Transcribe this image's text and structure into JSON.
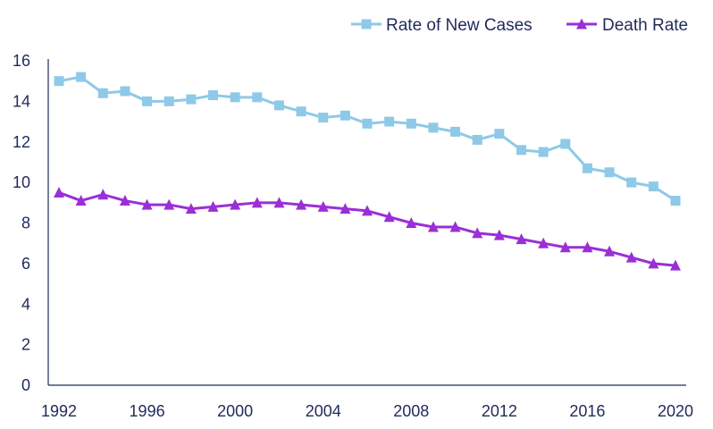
{
  "chart_data": {
    "type": "line",
    "title": "",
    "xlabel": "",
    "ylabel": "",
    "x": [
      1992,
      1993,
      1994,
      1995,
      1996,
      1997,
      1998,
      1999,
      2000,
      2001,
      2002,
      2003,
      2004,
      2005,
      2006,
      2007,
      2008,
      2009,
      2010,
      2011,
      2012,
      2013,
      2014,
      2015,
      2016,
      2017,
      2018,
      2019,
      2020
    ],
    "x_ticks": [
      "1992",
      "1996",
      "2000",
      "2004",
      "2008",
      "2012",
      "2016",
      "2020"
    ],
    "y_ticks": [
      "0",
      "2",
      "4",
      "6",
      "8",
      "10",
      "12",
      "14",
      "16"
    ],
    "xlim": [
      1992,
      2020
    ],
    "ylim": [
      0,
      16
    ],
    "grid": false,
    "legend_position": "top-right",
    "series": [
      {
        "name": "Rate of New Cases",
        "color": "#8ec9e8",
        "marker": "square",
        "values": [
          15.0,
          15.2,
          14.4,
          14.5,
          14.0,
          14.0,
          14.1,
          14.3,
          14.2,
          14.2,
          13.8,
          13.5,
          13.2,
          13.3,
          12.9,
          13.0,
          12.9,
          12.7,
          12.5,
          12.1,
          12.4,
          11.6,
          11.5,
          11.9,
          10.7,
          10.5,
          10.0,
          9.8,
          9.1
        ]
      },
      {
        "name": "Death Rate",
        "color": "#9b2fd6",
        "marker": "triangle",
        "values": [
          9.5,
          9.1,
          9.4,
          9.1,
          8.9,
          8.9,
          8.7,
          8.8,
          8.9,
          9.0,
          9.0,
          8.9,
          8.8,
          8.7,
          8.6,
          8.3,
          8.0,
          7.8,
          7.8,
          7.5,
          7.4,
          7.2,
          7.0,
          6.8,
          6.8,
          6.6,
          6.3,
          6.0,
          5.9
        ]
      }
    ]
  }
}
